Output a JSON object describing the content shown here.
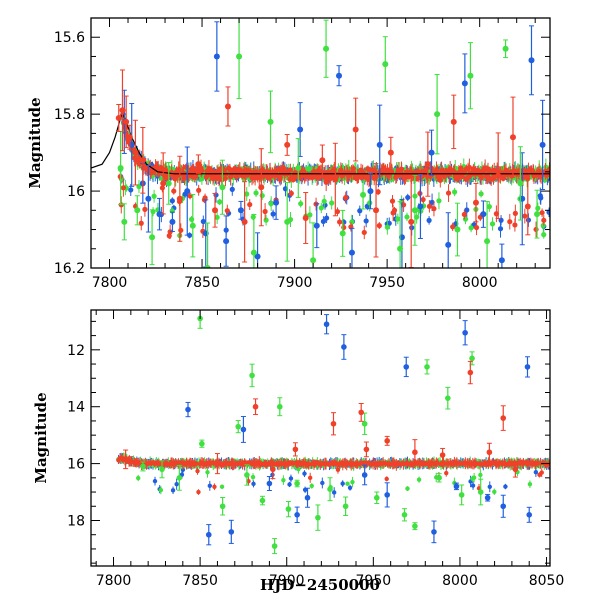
{
  "chart_data": [
    {
      "type": "scatter",
      "panel": "top",
      "title": "",
      "xlabel": "",
      "ylabel": "Magnitude",
      "xlim": [
        7790,
        8038
      ],
      "ylim": [
        16.2,
        15.55
      ],
      "y_inverted": true,
      "xticks": [
        7800,
        7850,
        7900,
        7950,
        8000
      ],
      "yticks": [
        15.6,
        15.8,
        16,
        16.2
      ],
      "ytick_labels": [
        "15.6",
        "15.8",
        "16",
        "16.2"
      ],
      "colors": {
        "blue": "#1f5fe0",
        "green": "#3fe03f",
        "red": "#f0402a",
        "model": "#000000"
      },
      "baseline": 15.955,
      "peak": {
        "x": 7807,
        "y": 15.8
      },
      "model_curve": [
        [
          7790,
          15.94
        ],
        [
          7796,
          15.93
        ],
        [
          7800,
          15.9
        ],
        [
          7803,
          15.86
        ],
        [
          7806,
          15.81
        ],
        [
          7807,
          15.8
        ],
        [
          7809,
          15.82
        ],
        [
          7812,
          15.86
        ],
        [
          7816,
          15.9
        ],
        [
          7820,
          15.93
        ],
        [
          7826,
          15.95
        ],
        [
          7835,
          15.955
        ],
        [
          8038,
          15.955
        ]
      ],
      "series": [
        {
          "color": "blue",
          "points": [
            [
              7808,
              15.82
            ],
            [
              7812,
              15.88
            ],
            [
              7818,
              15.98
            ],
            [
              7821,
              16.02
            ],
            [
              7827,
              16.06
            ],
            [
              7834,
              16.08
            ],
            [
              7842,
              16.0
            ],
            [
              7852,
              16.11
            ],
            [
              7858,
              15.65
            ],
            [
              7863,
              16.13
            ],
            [
              7871,
              16.05
            ],
            [
              7880,
              16.17
            ],
            [
              7890,
              16.03
            ],
            [
              7903,
              15.84
            ],
            [
              7912,
              16.09
            ],
            [
              7924,
              15.7
            ],
            [
              7931,
              16.16
            ],
            [
              7941,
              16.0
            ],
            [
              7946,
              15.88
            ],
            [
              7958,
              16.12
            ],
            [
              7968,
              16.04
            ],
            [
              7974,
              15.9
            ],
            [
              7983,
              16.14
            ],
            [
              7992,
              15.72
            ],
            [
              8002,
              16.06
            ],
            [
              8012,
              16.18
            ],
            [
              8023,
              16.02
            ],
            [
              8028,
              15.66
            ],
            [
              8034,
              15.88
            ]
          ]
        },
        {
          "color": "green",
          "points": [
            [
              7806,
              15.94
            ],
            [
              7808,
              16.08
            ],
            [
              7815,
              16.05
            ],
            [
              7823,
              16.12
            ],
            [
              7832,
              15.98
            ],
            [
              7845,
              16.09
            ],
            [
              7853,
              16.2
            ],
            [
              7861,
              15.99
            ],
            [
              7870,
              15.65
            ],
            [
              7878,
              16.16
            ],
            [
              7887,
              15.82
            ],
            [
              7896,
              16.08
            ],
            [
              7902,
              15.94
            ],
            [
              7910,
              16.18
            ],
            [
              7917,
              15.63
            ],
            [
              7926,
              16.11
            ],
            [
              7937,
              16.01
            ],
            [
              7949,
              15.67
            ],
            [
              7957,
              16.15
            ],
            [
              7965,
              16.05
            ],
            [
              7977,
              15.8
            ],
            [
              7988,
              16.1
            ],
            [
              7995,
              15.7
            ],
            [
              8004,
              16.13
            ],
            [
              8014,
              15.63
            ],
            [
              8022,
              15.98
            ],
            [
              8031,
              16.06
            ]
          ]
        },
        {
          "color": "red",
          "points": [
            [
              7805,
              15.81
            ],
            [
              7807,
              15.79
            ],
            [
              7809,
              15.82
            ],
            [
              7811,
              15.86
            ],
            [
              7814,
              15.9
            ],
            [
              7818,
              15.92
            ],
            [
              7829,
              15.98
            ],
            [
              7838,
              16.02
            ],
            [
              7848,
              15.93
            ],
            [
              7857,
              16.05
            ],
            [
              7864,
              15.78
            ],
            [
              7873,
              16.08
            ],
            [
              7882,
              15.99
            ],
            [
              7896,
              15.88
            ],
            [
              7906,
              16.07
            ],
            [
              7915,
              15.92
            ],
            [
              7922,
              15.97
            ],
            [
              7933,
              15.84
            ],
            [
              7944,
              16.05
            ],
            [
              7952,
              15.9
            ],
            [
              7963,
              16.08
            ],
            [
              7972,
              15.93
            ],
            [
              7986,
              15.82
            ],
            [
              7998,
              16.03
            ],
            [
              8010,
              15.96
            ],
            [
              8018,
              15.86
            ],
            [
              8026,
              16.04
            ]
          ]
        }
      ]
    },
    {
      "type": "scatter",
      "panel": "bottom",
      "title": "",
      "xlabel": "HJD−2450000",
      "ylabel": "Magnitude",
      "xlim": [
        7787,
        8052
      ],
      "ylim": [
        19.6,
        10.6
      ],
      "y_inverted": true,
      "xticks": [
        7800,
        7850,
        7900,
        7950,
        8000,
        8050
      ],
      "yticks": [
        12,
        14,
        16,
        18
      ],
      "ytick_labels": [
        "12",
        "14",
        "16",
        "18"
      ],
      "colors": {
        "blue": "#1f5fe0",
        "green": "#3fe03f",
        "red": "#f0402a"
      },
      "baseline": 16.0,
      "series": [
        {
          "color": "blue",
          "points": [
            [
              7843,
              14.1
            ],
            [
              7855,
              18.5
            ],
            [
              7868,
              18.4
            ],
            [
              7875,
              14.8
            ],
            [
              7890,
              16.7
            ],
            [
              7906,
              17.8
            ],
            [
              7912,
              17.2
            ],
            [
              7923,
              11.1
            ],
            [
              7933,
              11.9
            ],
            [
              7945,
              16.4
            ],
            [
              7958,
              17.1
            ],
            [
              7969,
              12.6
            ],
            [
              7985,
              18.4
            ],
            [
              7998,
              16.8
            ],
            [
              8003,
              11.4
            ],
            [
              8016,
              17.2
            ],
            [
              8025,
              17.5
            ],
            [
              8039,
              12.6
            ],
            [
              8040,
              17.8
            ]
          ]
        },
        {
          "color": "green",
          "points": [
            [
              7817,
              16.1
            ],
            [
              7828,
              16.2
            ],
            [
              7838,
              16.5
            ],
            [
              7850,
              10.9
            ],
            [
              7851,
              15.3
            ],
            [
              7863,
              17.5
            ],
            [
              7872,
              14.7
            ],
            [
              7877,
              16.4
            ],
            [
              7880,
              12.9
            ],
            [
              7886,
              17.3
            ],
            [
              7893,
              18.9
            ],
            [
              7896,
              14.0
            ],
            [
              7901,
              17.6
            ],
            [
              7906,
              16.7
            ],
            [
              7918,
              17.9
            ],
            [
              7925,
              16.9
            ],
            [
              7934,
              17.5
            ],
            [
              7945,
              14.6
            ],
            [
              7952,
              17.2
            ],
            [
              7968,
              17.8
            ],
            [
              7974,
              18.2
            ],
            [
              7981,
              12.6
            ],
            [
              7988,
              16.5
            ],
            [
              7993,
              13.7
            ],
            [
              8001,
              17.1
            ],
            [
              8007,
              12.3
            ],
            [
              8012,
              17.0
            ]
          ]
        },
        {
          "color": "red",
          "points": [
            [
              7807,
              15.85
            ],
            [
              7810,
              15.92
            ],
            [
              7813,
              15.96
            ],
            [
              7860,
              16.0
            ],
            [
              7882,
              14.0
            ],
            [
              7892,
              16.2
            ],
            [
              7905,
              15.5
            ],
            [
              7927,
              14.6
            ],
            [
              7943,
              14.2
            ],
            [
              7946,
              15.5
            ],
            [
              7958,
              15.2
            ],
            [
              7974,
              15.6
            ],
            [
              7990,
              15.7
            ],
            [
              8006,
              12.8
            ],
            [
              8017,
              15.6
            ],
            [
              8025,
              14.4
            ],
            [
              8032,
              16.2
            ]
          ]
        }
      ]
    }
  ]
}
